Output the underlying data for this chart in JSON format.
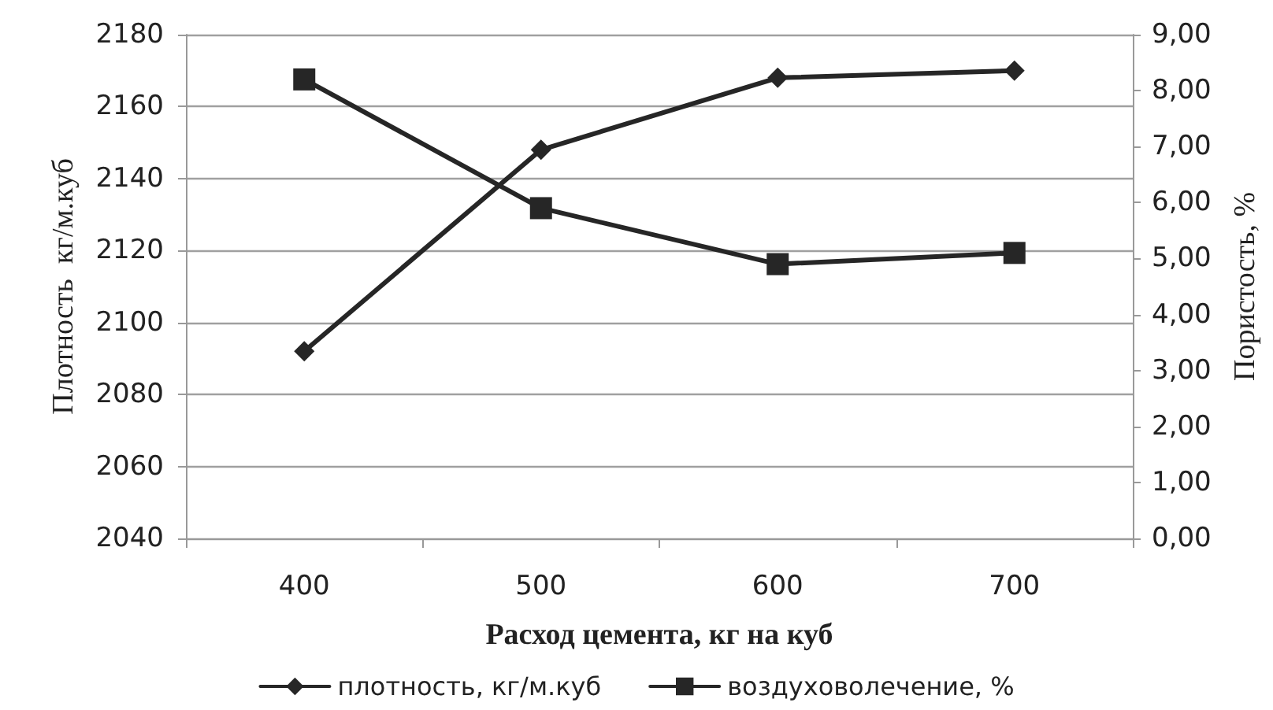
{
  "chart_data": {
    "type": "line",
    "xlabel": "Расход цемента, кг на куб",
    "ylabel": "Плотность  кг/м.куб",
    "y2label": "Пористость, %",
    "categories": [
      "400",
      "500",
      "600",
      "700"
    ],
    "series": [
      {
        "name": "плотность, кг/м.куб",
        "color": "#262626",
        "marker": "diamond",
        "values": [
          2092,
          2148,
          2168,
          2170
        ]
      },
      {
        "name": "воздуховолечение, %",
        "color": "#262626",
        "marker": "square",
        "axis": "y2",
        "values": [
          8.2,
          5.9,
          4.9,
          5.1
        ]
      }
    ],
    "ylim": [
      2040,
      2180
    ],
    "yticks": [
      2040,
      2060,
      2080,
      2100,
      2120,
      2140,
      2160,
      2180
    ],
    "y2lim": [
      0,
      9
    ],
    "y2ticks": [
      {
        "value": 0,
        "label": "0,00"
      },
      {
        "value": 1,
        "label": "1,00"
      },
      {
        "value": 2,
        "label": "2,00"
      },
      {
        "value": 3,
        "label": "3,00"
      },
      {
        "value": 4,
        "label": "4,00"
      },
      {
        "value": 5,
        "label": "5,00"
      },
      {
        "value": 6,
        "label": "6,00"
      },
      {
        "value": 7,
        "label": "7,00"
      },
      {
        "value": 8,
        "label": "8,00"
      },
      {
        "value": 9,
        "label": "9,00"
      }
    ],
    "grid": "y",
    "legend": "bottom",
    "line_style": "solid"
  }
}
